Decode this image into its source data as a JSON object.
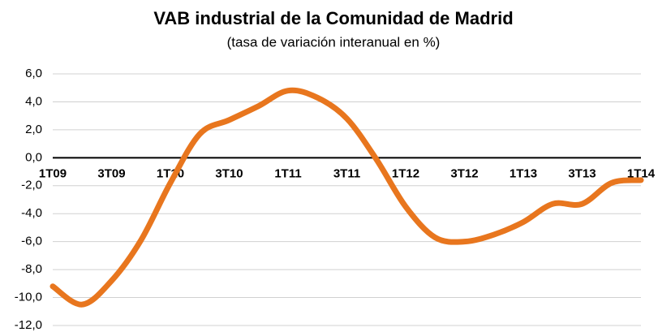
{
  "chart_data": {
    "type": "line",
    "title": "VAB industrial de la Comunidad de Madrid",
    "subtitle": "(tasa de variación interanual en %)",
    "categories": [
      "1T09",
      null,
      "3T09",
      null,
      "1T10",
      null,
      "3T10",
      null,
      "1T11",
      null,
      "3T11",
      null,
      "1T12",
      null,
      "3T12",
      null,
      "1T13",
      null,
      "3T13",
      null,
      "1T14"
    ],
    "series": [
      {
        "color": "#e8761e",
        "values": [
          -9.2,
          -10.5,
          -8.8,
          -5.9,
          -1.8,
          1.7,
          2.7,
          3.7,
          4.8,
          4.3,
          2.8,
          -0.1,
          -3.5,
          -5.7,
          -6.0,
          -5.5,
          -4.6,
          -3.3,
          -3.3,
          -1.8,
          -1.6
        ]
      }
    ],
    "ylim": [
      -12,
      6
    ],
    "yticks": [
      {
        "value": -12,
        "label": "-12,0"
      },
      {
        "value": -10,
        "label": "-10,0"
      },
      {
        "value": -8,
        "label": "-8,0"
      },
      {
        "value": -6,
        "label": "-6,0"
      },
      {
        "value": -4,
        "label": "-4,0"
      },
      {
        "value": -2,
        "label": "-2,0"
      },
      {
        "value": 0,
        "label": "0,0"
      },
      {
        "value": 2,
        "label": "2,0"
      },
      {
        "value": 4,
        "label": "4,0"
      },
      {
        "value": 6,
        "label": "6,0"
      }
    ],
    "grid": true
  }
}
